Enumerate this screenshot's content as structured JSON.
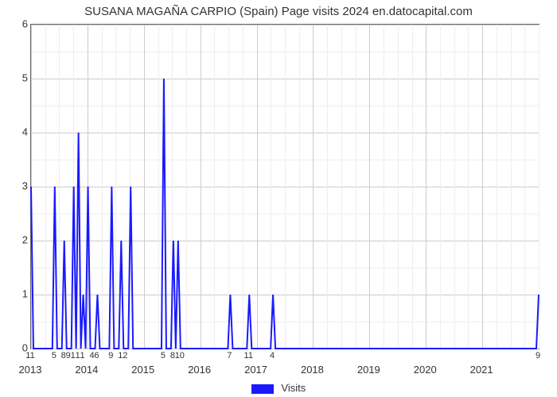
{
  "chart": {
    "type": "line",
    "title": "SUSANA MAGAÑA CARPIO (Spain) Page visits 2024 en.datocapital.com",
    "title_fontsize": 15,
    "background_color": "#ffffff",
    "grid_major_color": "#cccccc",
    "grid_minor_color": "#eeeeee",
    "axis_color": "#666666",
    "line_color": "#1a1aff",
    "line_width": 2,
    "ylim": [
      0,
      6
    ],
    "ytick_step": 1,
    "y_minor_step": 0.5,
    "years": [
      2013,
      2014,
      2015,
      2016,
      2017,
      2018,
      2019,
      2020,
      2021
    ],
    "year_positions": [
      0,
      12,
      24,
      36,
      48,
      60,
      72,
      84,
      96
    ],
    "n_points": 108,
    "y_values": [
      3,
      0,
      0,
      0,
      0,
      3,
      0,
      2,
      0,
      3,
      4,
      1,
      3,
      0,
      1,
      0,
      0,
      3,
      0,
      2,
      0,
      3,
      0,
      0,
      0,
      0,
      0,
      0,
      5,
      0,
      2,
      2,
      0,
      0,
      0,
      0,
      0,
      0,
      0,
      0,
      0,
      0,
      1,
      0,
      0,
      0,
      1,
      0,
      0,
      0,
      0,
      1,
      0,
      0,
      0,
      0,
      0,
      0,
      0,
      0,
      0,
      0,
      0,
      0,
      0,
      0,
      0,
      0,
      0,
      0,
      0,
      0,
      0,
      0,
      0,
      0,
      0,
      0,
      0,
      0,
      0,
      0,
      0,
      0,
      0,
      0,
      0,
      0,
      0,
      0,
      0,
      0,
      0,
      0,
      0,
      0,
      0,
      0,
      0,
      0,
      0,
      0,
      0,
      0,
      0,
      0,
      0,
      1
    ],
    "point_labels": [
      {
        "idx": 0,
        "label": "11"
      },
      {
        "idx": 5,
        "label": "5"
      },
      {
        "idx": 7,
        "label": "8"
      },
      {
        "idx": 8,
        "label": "9"
      },
      {
        "idx": 9,
        "label": "1"
      },
      {
        "idx": 10,
        "label": "1"
      },
      {
        "idx": 11,
        "label": "1"
      },
      {
        "idx": 13,
        "label": "4"
      },
      {
        "idx": 14,
        "label": "6"
      },
      {
        "idx": 17,
        "label": "9"
      },
      {
        "idx": 19,
        "label": "1"
      },
      {
        "idx": 20,
        "label": "2"
      },
      {
        "idx": 28,
        "label": "5"
      },
      {
        "idx": 30,
        "label": "8"
      },
      {
        "idx": 31,
        "label": "1"
      },
      {
        "idx": 32,
        "label": "0"
      },
      {
        "idx": 42,
        "label": "7"
      },
      {
        "idx": 46,
        "label": "11"
      },
      {
        "idx": 51,
        "label": "4"
      },
      {
        "idx": 107,
        "label": "9"
      }
    ],
    "legend_label": "Visits",
    "legend_swatch_color": "#1a1aff"
  }
}
